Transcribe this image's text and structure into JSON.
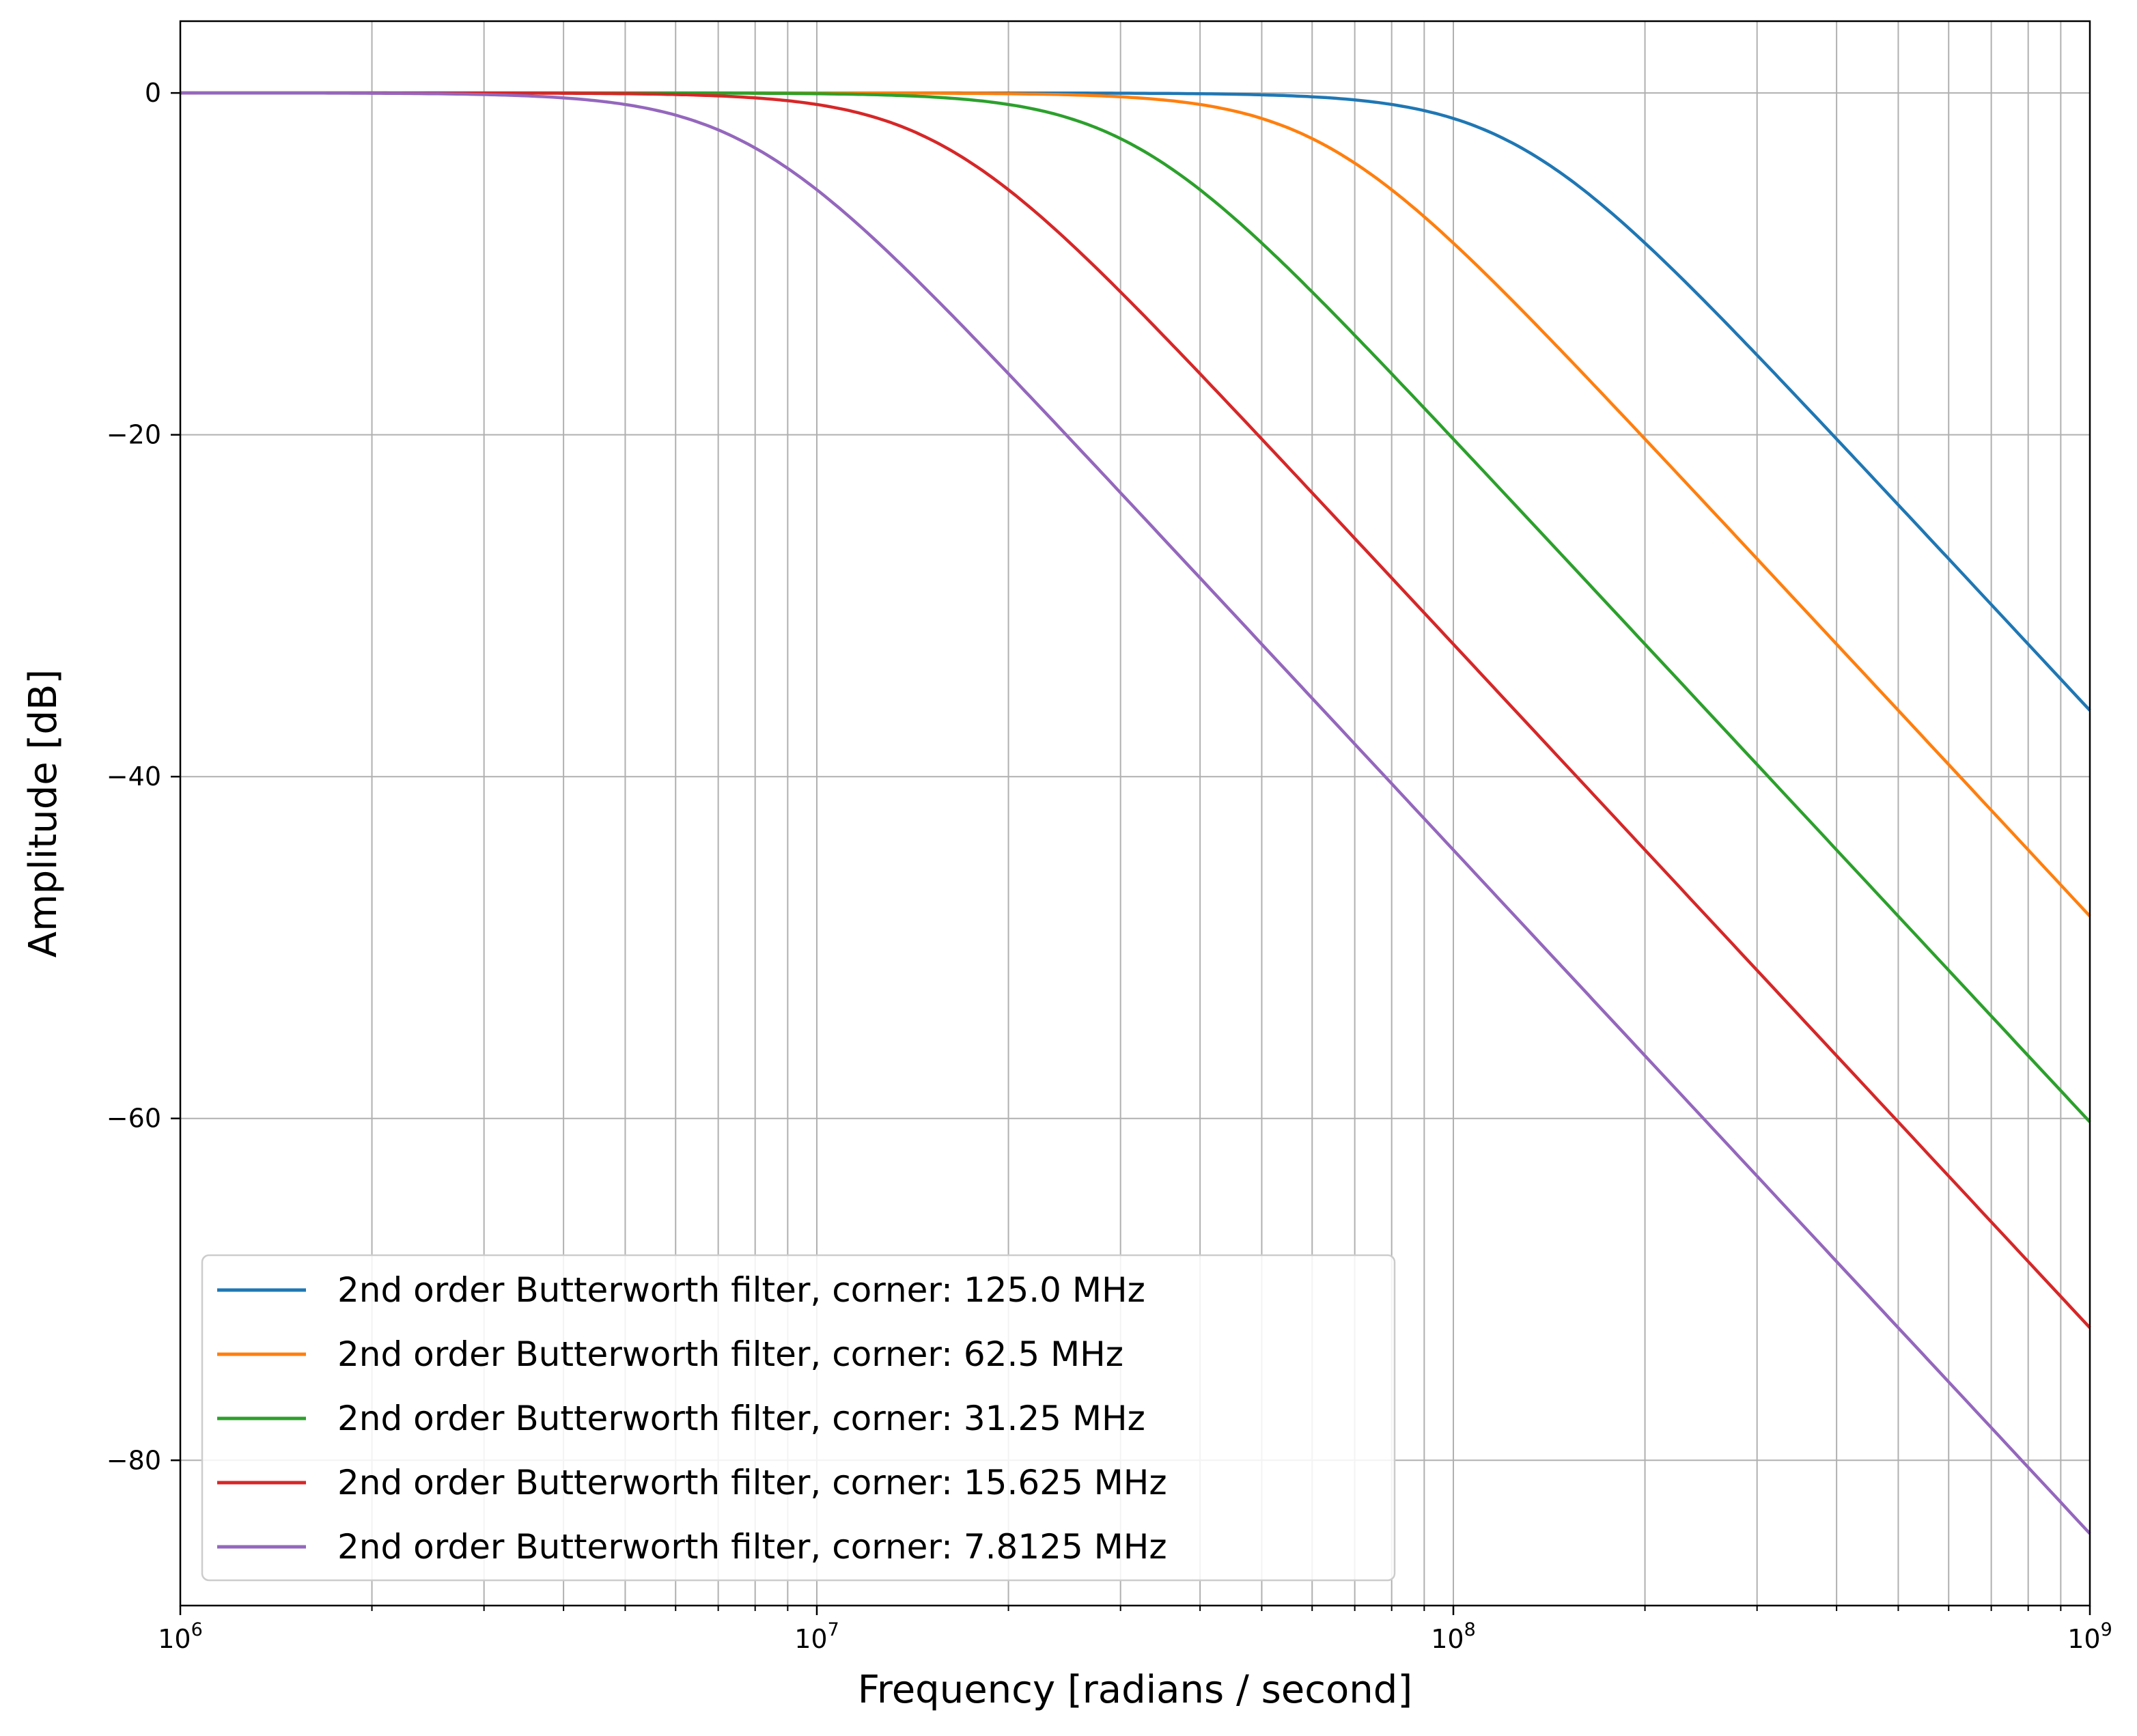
{
  "chart_data": {
    "type": "line",
    "title": "",
    "xlabel": "Frequency [radians / second]",
    "ylabel": "Amplitude [dB]",
    "xscale": "log",
    "xlim": [
      1000000,
      1000000000
    ],
    "ylim": [
      -88.5,
      4.2
    ],
    "x_ticks": [
      {
        "value": 1000000,
        "base": "10",
        "exp": "6"
      },
      {
        "value": 10000000,
        "base": "10",
        "exp": "7"
      },
      {
        "value": 100000000,
        "base": "10",
        "exp": "8"
      },
      {
        "value": 1000000000,
        "base": "10",
        "exp": "9"
      }
    ],
    "y_ticks": [
      {
        "value": 0,
        "label": "0"
      },
      {
        "value": -20,
        "label": "−20"
      },
      {
        "value": -40,
        "label": "−40"
      },
      {
        "value": -60,
        "label": "−60"
      },
      {
        "value": -80,
        "label": "−80"
      }
    ],
    "grid": true,
    "grid_minor_x": true,
    "legend_position": "lower-left",
    "filter_order": 2,
    "series": [
      {
        "name": "2nd order Butterworth filter, corner: 125.0 MHz",
        "corner_rad_per_s": 125000000,
        "color": "#1f77b4"
      },
      {
        "name": "2nd order Butterworth filter, corner: 62.5 MHz",
        "corner_rad_per_s": 62500000,
        "color": "#ff7f0e"
      },
      {
        "name": "2nd order Butterworth filter, corner: 31.25 MHz",
        "corner_rad_per_s": 31250000,
        "color": "#2ca02c"
      },
      {
        "name": "2nd order Butterworth filter, corner: 15.625 MHz",
        "corner_rad_per_s": 15625000,
        "color": "#d62728"
      },
      {
        "name": "2nd order Butterworth filter, corner: 7.8125 MHz",
        "corner_rad_per_s": 7812500,
        "color": "#9467bd"
      }
    ]
  }
}
